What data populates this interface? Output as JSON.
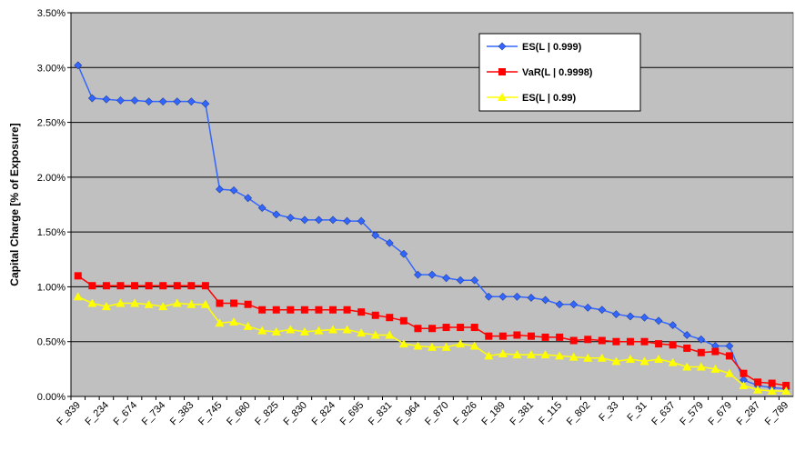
{
  "chart_data": {
    "type": "line",
    "y_label": "Capital Charge [% of Exposure]",
    "categories": [
      "F_839",
      null,
      "F_234",
      null,
      "F_674",
      null,
      "F_734",
      null,
      "F_383",
      null,
      "F_745",
      null,
      "F_680",
      null,
      "F_825",
      null,
      "F_830",
      null,
      "F_824",
      null,
      "F_695",
      null,
      "F_831",
      null,
      "F_964",
      null,
      "F_870",
      null,
      "F_826",
      null,
      "F_189",
      null,
      "F_381",
      null,
      "F_115",
      null,
      "F_802",
      null,
      "F_33",
      null,
      "F_31",
      null,
      "F_637",
      null,
      "F_579",
      null,
      "F_679",
      null,
      "F_287",
      null,
      "F_789"
    ],
    "series": [
      {
        "name": "ES(L | 0.999)",
        "color": "#3366ff",
        "marker": "diamond",
        "values": [
          3.02,
          2.72,
          2.71,
          2.7,
          2.7,
          2.69,
          2.69,
          2.69,
          2.69,
          2.67,
          1.89,
          1.88,
          1.81,
          1.72,
          1.66,
          1.63,
          1.61,
          1.61,
          1.61,
          1.6,
          1.6,
          1.47,
          1.4,
          1.3,
          1.11,
          1.11,
          1.08,
          1.06,
          1.06,
          0.91,
          0.91,
          0.91,
          0.9,
          0.88,
          0.84,
          0.84,
          0.81,
          0.79,
          0.75,
          0.73,
          0.72,
          0.69,
          0.65,
          0.56,
          0.52,
          0.46,
          0.46,
          0.15,
          0.1,
          0.08,
          0.07
        ]
      },
      {
        "name": "VaR(L | 0.9998)",
        "color": "#ff0000",
        "marker": "square",
        "values": [
          1.1,
          1.01,
          1.01,
          1.01,
          1.01,
          1.01,
          1.01,
          1.01,
          1.01,
          1.01,
          0.85,
          0.85,
          0.84,
          0.79,
          0.79,
          0.79,
          0.79,
          0.79,
          0.79,
          0.79,
          0.77,
          0.74,
          0.72,
          0.69,
          0.62,
          0.62,
          0.63,
          0.63,
          0.63,
          0.55,
          0.55,
          0.56,
          0.55,
          0.54,
          0.54,
          0.51,
          0.52,
          0.51,
          0.5,
          0.5,
          0.5,
          0.48,
          0.47,
          0.44,
          0.4,
          0.41,
          0.37,
          0.21,
          0.13,
          0.12,
          0.1
        ]
      },
      {
        "name": "ES(L | 0.99)",
        "color": "#ffff00",
        "marker": "triangle",
        "values": [
          0.91,
          0.85,
          0.82,
          0.85,
          0.85,
          0.84,
          0.82,
          0.85,
          0.84,
          0.84,
          0.67,
          0.68,
          0.64,
          0.6,
          0.59,
          0.61,
          0.59,
          0.6,
          0.61,
          0.61,
          0.58,
          0.56,
          0.56,
          0.48,
          0.46,
          0.45,
          0.45,
          0.48,
          0.46,
          0.37,
          0.39,
          0.38,
          0.38,
          0.38,
          0.37,
          0.36,
          0.35,
          0.35,
          0.32,
          0.34,
          0.32,
          0.34,
          0.31,
          0.27,
          0.27,
          0.25,
          0.21,
          0.1,
          0.06,
          0.05,
          0.05
        ]
      }
    ],
    "ylim": [
      0,
      3.5
    ],
    "yticks": [
      {
        "value": 0,
        "label": "0.00%"
      },
      {
        "value": 0.5,
        "label": "0.50%"
      },
      {
        "value": 1,
        "label": "1.00%"
      },
      {
        "value": 1.5,
        "label": "1.50%"
      },
      {
        "value": 2,
        "label": "2.00%"
      },
      {
        "value": 2.5,
        "label": "2.50%"
      },
      {
        "value": 3,
        "label": "3.00%"
      },
      {
        "value": 3.5,
        "label": "3.50%"
      }
    ],
    "grid": true,
    "legend": "top-right",
    "plot_background": "#c0c0c0"
  }
}
